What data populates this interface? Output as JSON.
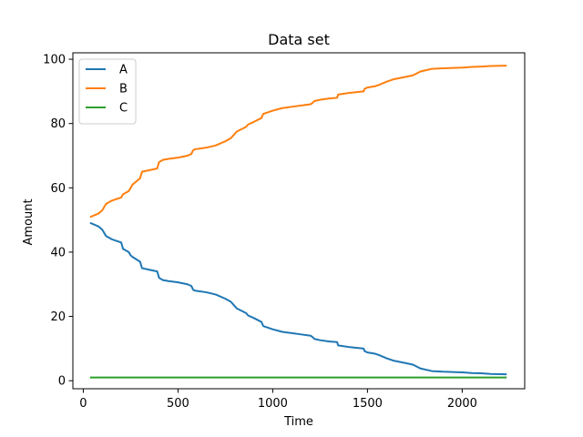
{
  "chart_data": {
    "type": "line",
    "title": "Data set",
    "xlabel": "Time",
    "ylabel": "Amount",
    "xlim": [
      -55,
      2330
    ],
    "ylim": [
      -2.5,
      102
    ],
    "xticks": [
      0,
      500,
      1000,
      1500,
      2000
    ],
    "yticks": [
      0,
      20,
      40,
      60,
      80,
      100
    ],
    "grid": false,
    "legend": "top-left",
    "series": [
      {
        "name": "A",
        "color": "#1f77b4",
        "x": [
          40,
          80,
          100,
          120,
          150,
          200,
          210,
          240,
          250,
          260,
          300,
          310,
          350,
          390,
          400,
          420,
          450,
          500,
          550,
          570,
          580,
          590,
          650,
          700,
          750,
          780,
          810,
          840,
          860,
          870,
          900,
          940,
          950,
          1000,
          1050,
          1100,
          1150,
          1200,
          1210,
          1220,
          1250,
          1300,
          1340,
          1345,
          1400,
          1480,
          1485,
          1500,
          1540,
          1560,
          1600,
          1640,
          1700,
          1740,
          1780,
          1840,
          1900,
          1950,
          2000,
          2050,
          2100,
          2150,
          2230
        ],
        "y": [
          49,
          48,
          47,
          45,
          44,
          43,
          41,
          40,
          39,
          38.5,
          37,
          35,
          34.5,
          34,
          32,
          31.3,
          31,
          30.6,
          30,
          29.5,
          28.3,
          28,
          27.5,
          26.8,
          25.5,
          24.5,
          22.5,
          21.6,
          21,
          20.3,
          19.5,
          18.3,
          17,
          16,
          15.2,
          14.8,
          14.4,
          14,
          13.6,
          13,
          12.6,
          12.2,
          12,
          11,
          10.5,
          10,
          9.2,
          8.8,
          8.4,
          8,
          7,
          6.2,
          5.5,
          5,
          3.8,
          3,
          2.8,
          2.7,
          2.6,
          2.4,
          2.3,
          2.1,
          2
        ]
      },
      {
        "name": "B",
        "color": "#ff7f0e",
        "x": [
          40,
          80,
          100,
          120,
          150,
          200,
          210,
          240,
          250,
          260,
          300,
          310,
          350,
          390,
          400,
          420,
          450,
          500,
          550,
          570,
          580,
          590,
          650,
          700,
          750,
          780,
          810,
          840,
          860,
          870,
          900,
          940,
          950,
          1000,
          1050,
          1100,
          1150,
          1200,
          1210,
          1220,
          1250,
          1300,
          1340,
          1345,
          1400,
          1480,
          1485,
          1500,
          1540,
          1560,
          1600,
          1640,
          1700,
          1740,
          1780,
          1840,
          1900,
          1950,
          2000,
          2050,
          2100,
          2150,
          2230
        ],
        "y": [
          51,
          52,
          53,
          55,
          56,
          57,
          58,
          59,
          60,
          61,
          63,
          65,
          65.5,
          66,
          68,
          68.7,
          69,
          69.4,
          70,
          70.5,
          71.7,
          72,
          72.5,
          73.2,
          74.5,
          75.5,
          77.5,
          78.4,
          79,
          79.7,
          80.5,
          81.7,
          83,
          84,
          84.8,
          85.2,
          85.6,
          86,
          86.4,
          87,
          87.4,
          87.8,
          88,
          89,
          89.5,
          90,
          90.8,
          91.2,
          91.6,
          92,
          93,
          93.8,
          94.5,
          95,
          96.2,
          97,
          97.2,
          97.3,
          97.4,
          97.6,
          97.7,
          97.9,
          98
        ]
      },
      {
        "name": "C",
        "color": "#2ca02c",
        "x": [
          40,
          2230
        ],
        "y": [
          1,
          1
        ]
      }
    ]
  }
}
